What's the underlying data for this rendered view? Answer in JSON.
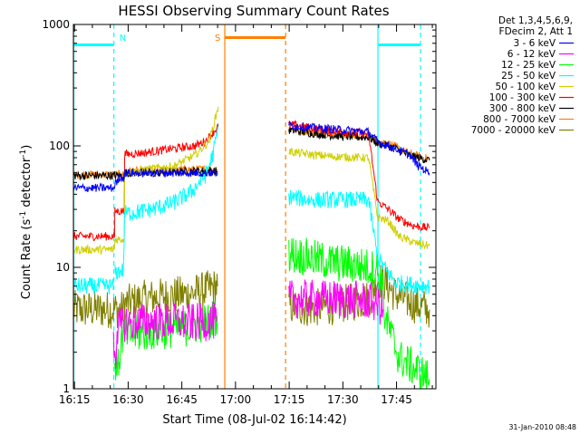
{
  "chart_data": {
    "type": "line",
    "title": "HESSI Observing Summary Count Rates",
    "xlabel": "Start Time (08-Jul-02 16:14:42)",
    "ylabel_main": "Count Rate (s",
    "ylabel_sup1": "-1",
    "ylabel_mid": " detector",
    "ylabel_sup2": "-1",
    "ylabel_end": ")",
    "date_stamp": "31-Jan-2010 08:48",
    "yscale": "log",
    "ylim": [
      1,
      1000
    ],
    "x_range_minutes_after_16_14_42": [
      0,
      101.3
    ],
    "x_ticks": [
      {
        "label": "16:15",
        "t": 0.3
      },
      {
        "label": "16:30",
        "t": 15.3
      },
      {
        "label": "16:45",
        "t": 30.3
      },
      {
        "label": "17:00",
        "t": 45.3
      },
      {
        "label": "17:15",
        "t": 60.3
      },
      {
        "label": "17:30",
        "t": 75.3
      },
      {
        "label": "17:45",
        "t": 90.3
      }
    ],
    "y_ticks": [
      {
        "label": "1",
        "v": 1
      },
      {
        "label": "10",
        "v": 10
      },
      {
        "label": "100",
        "v": 100
      },
      {
        "label": "1000",
        "v": 1000
      }
    ],
    "legend_header": [
      "Det 1,3,4,5,6,9,",
      "FDecim 2, Att 1"
    ],
    "legend_position": "top-right",
    "series": [
      {
        "name": "3 - 6 keV",
        "color": "#0000ff",
        "segments": [
          {
            "t": [
              0,
              11.5,
              11.6,
              12.5,
              12.6,
              14.2,
              14.3,
              24,
              32,
              39,
              40.3
            ],
            "y": [
              45,
              45,
              50,
              50,
              55,
              55,
              60,
              60,
              60,
              60,
              60
            ]
          },
          {
            "t": [
              60.2,
              66,
              72,
              80,
              82.5,
              85,
              88,
              91,
              94,
              96,
              99.5
            ],
            "y": [
              148,
              142,
              138,
              132,
              130,
              108,
              100,
              92,
              85,
              70,
              60
            ]
          }
        ]
      },
      {
        "name": "6 - 12 keV",
        "color": "#ff00ff",
        "segments": [
          {
            "t": [
              11.2,
              12,
              12.2,
              13.5,
              14,
              16,
              25,
              33,
              40
            ],
            "y": [
              2.3,
              2.0,
              3.2,
              3.2,
              3.5,
              3.5,
              3.6,
              3.5,
              3.6
            ]
          },
          {
            "t": [
              60.2,
              68,
              75,
              80,
              82.5,
              85,
              86.5
            ],
            "y": [
              5.5,
              5.5,
              5.5,
              5.4,
              5.3,
              5.0,
              4.5
            ]
          }
        ]
      },
      {
        "name": "12 - 25 keV",
        "color": "#00ff00",
        "segments": [
          {
            "t": [
              11.5,
              12.5,
              13.5,
              14.2,
              16,
              24,
              32,
              37,
              40.2
            ],
            "y": [
              1.6,
              1.5,
              2.6,
              2.8,
              2.8,
              3.0,
              3.2,
              3.5,
              4.0
            ]
          },
          {
            "t": [
              60.2,
              66,
              72,
              78,
              82.5,
              85,
              86.5,
              87,
              91,
              95,
              99.5
            ],
            "y": [
              13,
              12,
              11,
              10.5,
              10,
              9.5,
              6.5,
              4.0,
              1.8,
              1.5,
              1.2
            ]
          }
        ]
      },
      {
        "name": "25 - 50 keV",
        "color": "#00ffff",
        "segments": [
          {
            "t": [
              0,
              11.3
            ],
            "y": [
              7,
              7
            ]
          },
          {
            "t": [
              11.6,
              14,
              14.3,
              16,
              22,
              28,
              33,
              37,
              39,
              40.5
            ],
            "y": [
              9,
              9.5,
              28,
              28,
              30,
              34,
              42,
              58,
              85,
              140
            ]
          },
          {
            "t": [
              60.2,
              66,
              72,
              80,
              82.5,
              85,
              88,
              90,
              99.5
            ],
            "y": [
              38,
              36,
              36,
              36,
              36,
              12,
              9,
              7.5,
              7.0
            ]
          }
        ]
      },
      {
        "name": "50 - 100 keV",
        "color": "#d0d000",
        "segments": [
          {
            "t": [
              0,
              11.5,
              11.6,
              14.2,
              14.3,
              20,
              28,
              34,
              38,
              40.5
            ],
            "y": [
              14,
              14,
              17,
              17,
              60,
              64,
              68,
              84,
              110,
              210
            ]
          },
          {
            "t": [
              60.2,
              66,
              72,
              80,
              82.5,
              85,
              88,
              91,
              95,
              99.5
            ],
            "y": [
              90,
              85,
              82,
              80,
              80,
              26,
              24,
              18,
              16,
              15
            ]
          }
        ]
      },
      {
        "name": "100 - 300 keV",
        "color": "#ff0000",
        "segments": [
          {
            "t": [
              0,
              11.5,
              11.6,
              14.2,
              14.3,
              20,
              28,
              34,
              37,
              40.5
            ],
            "y": [
              18,
              18,
              29,
              29,
              85,
              88,
              95,
              100,
              110,
              145
            ]
          },
          {
            "t": [
              60.2,
              66,
              72,
              80,
              82.5,
              85,
              88,
              91,
              95,
              99.5
            ],
            "y": [
              150,
              142,
              132,
              128,
              125,
              35,
              30,
              25,
              22,
              21
            ]
          }
        ]
      },
      {
        "name": "300 - 800 keV",
        "color": "#000000",
        "segments": [
          {
            "t": [
              0,
              11.5,
              11.6,
              14.2,
              14.3,
              24,
              32,
              38,
              40.3
            ],
            "y": [
              57,
              57,
              57,
              57,
              60,
              60,
              62,
              62,
              62
            ]
          },
          {
            "t": [
              60.2,
              66,
              72,
              80,
              82.5,
              85,
              88,
              91,
              94,
              99.5
            ],
            "y": [
              135,
              128,
              122,
              118,
              118,
              105,
              100,
              92,
              83,
              76
            ]
          }
        ]
      },
      {
        "name": "800 - 7000 keV",
        "color": "#ff7f00",
        "segments": [
          {
            "t": [
              0,
              11.5,
              11.6,
              14.2,
              14.3,
              24,
              32,
              38,
              40.3
            ],
            "y": [
              58,
              58,
              58,
              58,
              62,
              62,
              64,
              64,
              64
            ]
          },
          {
            "t": [
              60.2,
              66,
              72,
              80,
              82.5,
              85,
              88,
              91,
              94,
              99.5
            ],
            "y": [
              138,
              130,
              126,
              120,
              120,
              110,
              105,
              95,
              86,
              78
            ]
          }
        ]
      },
      {
        "name": "7000 - 20000 keV",
        "color": "#808000",
        "segments": [
          {
            "t": [
              0,
              11.3,
              11.6,
              14,
              14.3,
              20,
              26,
              32,
              37,
              40.3
            ],
            "y": [
              4.5,
              4.5,
              4.5,
              4.5,
              5.0,
              5.5,
              5.8,
              6.0,
              6.5,
              7.0
            ]
          },
          {
            "t": [
              60.2,
              66,
              72,
              78,
              82.5,
              85,
              87,
              90,
              95,
              99.5
            ],
            "y": [
              4.8,
              4.6,
              4.8,
              5.2,
              5.5,
              8.0,
              7.5,
              6.0,
              5.0,
              4.5
            ]
          }
        ]
      }
    ],
    "mode_markers": [
      {
        "label": "N",
        "color": "#00ffff",
        "t_start": 11.3,
        "t_end": 85.1,
        "y_level": 680
      }
    ],
    "mode_bars": [
      {
        "label": "N",
        "color": "#00ffff",
        "t_start": 0,
        "t_end": 11.3,
        "y": 680
      },
      {
        "label": "",
        "color": "#00ffff",
        "t_start": 85.1,
        "t_end": 97,
        "y": 680
      },
      {
        "label": "S",
        "color": "#ff7f00",
        "t_start": 42.3,
        "t_end": 59.3,
        "y": 780
      }
    ],
    "vlines": [
      {
        "t": 0.1,
        "color": "#00ffff",
        "dash": false
      },
      {
        "t": 11.3,
        "color": "#00ffff",
        "dash": true
      },
      {
        "t": 85.1,
        "color": "#00ffff",
        "dash": false
      },
      {
        "t": 97,
        "color": "#00ffff",
        "dash": true
      },
      {
        "t": 42.3,
        "color": "#ff7f00",
        "dash": false
      },
      {
        "t": 59.3,
        "color": "#ff7f00",
        "dash": true
      }
    ],
    "mode_labels": [
      {
        "label": "N",
        "color": "#00ffff",
        "t": 13.8
      },
      {
        "label": "S",
        "color": "#ff7f00",
        "t": 40.3
      }
    ]
  }
}
